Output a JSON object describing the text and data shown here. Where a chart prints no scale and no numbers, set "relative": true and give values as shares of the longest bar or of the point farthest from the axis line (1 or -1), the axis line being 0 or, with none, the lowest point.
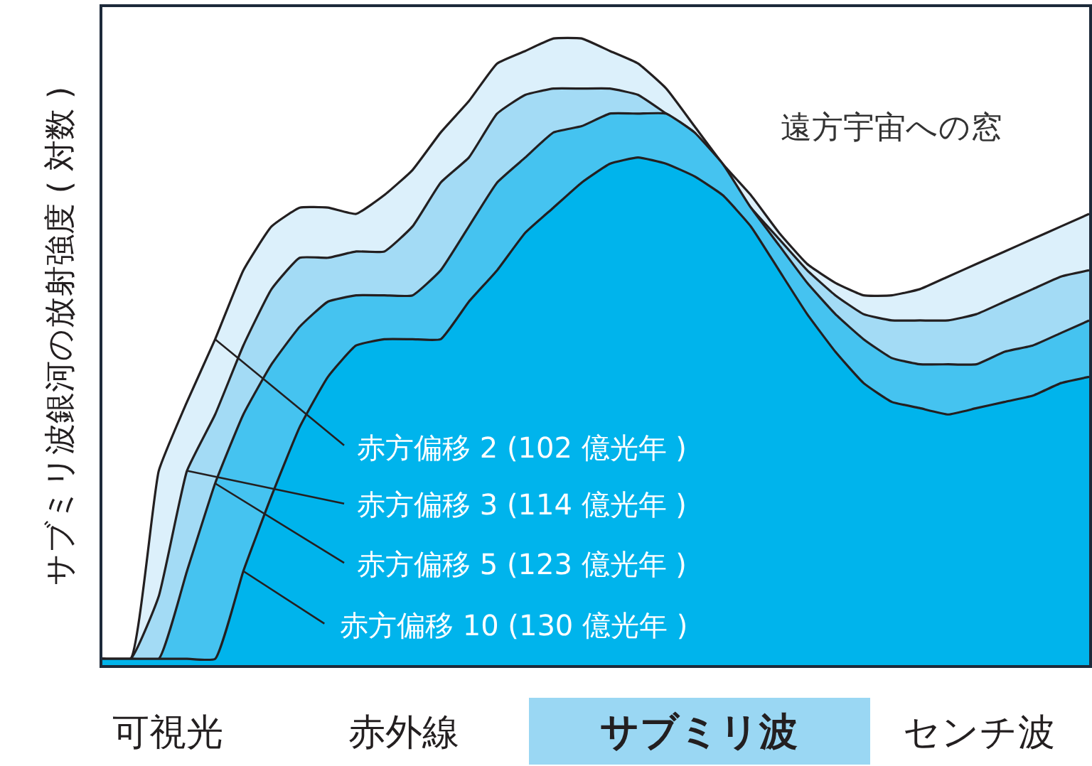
{
  "chart_data": {
    "type": "area",
    "relative": true,
    "ylabel": "サブミリ波銀河の放射強度 ( 対数 )",
    "legend": false,
    "grid": false,
    "categories": [
      null,
      null,
      null,
      null,
      null,
      null,
      null,
      null,
      null,
      null,
      null,
      null,
      null,
      null,
      null,
      null,
      null,
      null,
      null,
      null,
      null,
      null,
      null,
      null,
      null,
      null,
      null,
      null,
      null,
      null,
      null,
      null,
      null,
      null,
      null,
      null
    ],
    "series": [
      {
        "name": "赤方偏移 2 (102 億光年 )",
        "color": "#dcf0fb",
        "values": [
          0.01,
          0.01,
          0.31,
          0.42,
          0.52,
          0.63,
          0.7,
          0.73,
          0.73,
          0.72,
          0.75,
          0.79,
          0.85,
          0.9,
          0.96,
          0.98,
          1.0,
          1.0,
          0.98,
          0.96,
          0.92,
          0.86,
          0.8,
          0.75,
          0.69,
          0.64,
          0.61,
          0.59,
          0.59,
          0.6,
          0.62,
          0.64,
          0.66,
          0.68,
          0.7,
          0.72
        ]
      },
      {
        "name": "赤方偏移 3 (114 億光年 )",
        "color": "#a3dbf5",
        "values": [
          0.01,
          0.01,
          0.11,
          0.31,
          0.4,
          0.51,
          0.6,
          0.65,
          0.65,
          0.66,
          0.66,
          0.7,
          0.77,
          0.81,
          0.88,
          0.91,
          0.92,
          0.92,
          0.92,
          0.91,
          0.88,
          0.85,
          0.79,
          0.73,
          0.68,
          0.63,
          0.59,
          0.56,
          0.55,
          0.55,
          0.55,
          0.56,
          0.58,
          0.6,
          0.62,
          0.63
        ]
      },
      {
        "name": "赤方偏移 5 (123 億光年 )",
        "color": "#45c3f0",
        "values": [
          0.01,
          0.01,
          0.01,
          0.15,
          0.29,
          0.4,
          0.48,
          0.54,
          0.58,
          0.59,
          0.59,
          0.59,
          0.63,
          0.7,
          0.77,
          0.81,
          0.85,
          0.86,
          0.88,
          0.88,
          0.88,
          0.85,
          0.8,
          0.73,
          0.67,
          0.61,
          0.56,
          0.52,
          0.49,
          0.48,
          0.48,
          0.48,
          0.5,
          0.51,
          0.53,
          0.55
        ]
      },
      {
        "name": "赤方偏移 10 (130 億光年 )",
        "color": "#00b4ec",
        "values": [
          0.01,
          0.01,
          0.01,
          0.01,
          0.01,
          0.15,
          0.27,
          0.38,
          0.46,
          0.51,
          0.52,
          0.52,
          0.52,
          0.58,
          0.63,
          0.69,
          0.73,
          0.77,
          0.8,
          0.81,
          0.8,
          0.78,
          0.75,
          0.7,
          0.63,
          0.56,
          0.5,
          0.45,
          0.42,
          0.41,
          0.4,
          0.41,
          0.42,
          0.43,
          0.45,
          0.46
        ]
      }
    ],
    "line_style": "solid",
    "marker": "none",
    "annotations": [
      "遠方宇宙への窓",
      "可視光",
      "赤外線",
      "サブミリ波",
      "センチ波"
    ]
  }
}
